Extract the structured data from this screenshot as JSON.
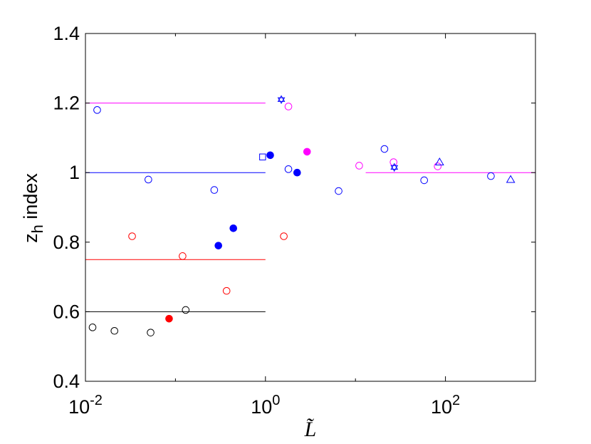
{
  "chart_data": {
    "type": "scatter",
    "title": "",
    "xlabel": "L̃",
    "ylabel_main": "z",
    "ylabel_sub": "h",
    "ylabel_rest": " index",
    "xscale": "log",
    "xlim": [
      0.01,
      1000
    ],
    "ylim": [
      0.4,
      1.4
    ],
    "xticks": [
      {
        "value": 0.01,
        "base": "10",
        "exp": "-2"
      },
      {
        "value": 1,
        "base": "10",
        "exp": "0"
      },
      {
        "value": 100,
        "base": "10",
        "exp": "2"
      }
    ],
    "yticks": [
      {
        "value": 0.4,
        "label": "0.4"
      },
      {
        "value": 0.6,
        "label": "0.6"
      },
      {
        "value": 0.8,
        "label": "0.8"
      },
      {
        "value": 1.0,
        "label": "1"
      },
      {
        "value": 1.2,
        "label": "1.2"
      },
      {
        "value": 1.4,
        "label": "1.4"
      }
    ],
    "grid": false,
    "reference_lines": [
      {
        "y": 1.2,
        "x0": 0.01,
        "x1": 1,
        "color": "#ff00ff"
      },
      {
        "y": 1.0,
        "x0": 0.01,
        "x1": 1,
        "color": "#0000ff"
      },
      {
        "y": 0.75,
        "x0": 0.01,
        "x1": 1,
        "color": "#ff0000"
      },
      {
        "y": 0.6,
        "x0": 0.01,
        "x1": 1,
        "color": "#000000"
      },
      {
        "y": 1.0,
        "x0": 13,
        "x1": 1000,
        "color": "#ff00ff"
      }
    ],
    "points": [
      {
        "x": 0.012,
        "y": 0.555,
        "marker": "circle",
        "filled": false,
        "color": "#000000"
      },
      {
        "x": 0.021,
        "y": 0.545,
        "marker": "circle",
        "filled": false,
        "color": "#000000"
      },
      {
        "x": 0.053,
        "y": 0.54,
        "marker": "circle",
        "filled": false,
        "color": "#000000"
      },
      {
        "x": 0.13,
        "y": 0.605,
        "marker": "circle",
        "filled": false,
        "color": "#000000"
      },
      {
        "x": 0.085,
        "y": 0.58,
        "marker": "circle",
        "filled": true,
        "color": "#ff0000"
      },
      {
        "x": 0.033,
        "y": 0.817,
        "marker": "circle",
        "filled": false,
        "color": "#ff0000"
      },
      {
        "x": 0.12,
        "y": 0.76,
        "marker": "circle",
        "filled": false,
        "color": "#ff0000"
      },
      {
        "x": 0.37,
        "y": 0.66,
        "marker": "circle",
        "filled": false,
        "color": "#ff0000"
      },
      {
        "x": 1.6,
        "y": 0.817,
        "marker": "circle",
        "filled": false,
        "color": "#ff0000"
      },
      {
        "x": 0.3,
        "y": 0.79,
        "marker": "circle",
        "filled": true,
        "color": "#0000ff"
      },
      {
        "x": 0.44,
        "y": 0.84,
        "marker": "circle",
        "filled": true,
        "color": "#0000ff"
      },
      {
        "x": 1.13,
        "y": 1.05,
        "marker": "circle",
        "filled": true,
        "color": "#0000ff"
      },
      {
        "x": 2.25,
        "y": 1.0,
        "marker": "circle",
        "filled": true,
        "color": "#0000ff"
      },
      {
        "x": 2.9,
        "y": 1.06,
        "marker": "circle",
        "filled": true,
        "color": "#ff00ff"
      },
      {
        "x": 0.0135,
        "y": 1.18,
        "marker": "circle",
        "filled": false,
        "color": "#0000ff"
      },
      {
        "x": 0.05,
        "y": 0.98,
        "marker": "circle",
        "filled": false,
        "color": "#0000ff"
      },
      {
        "x": 0.27,
        "y": 0.95,
        "marker": "circle",
        "filled": false,
        "color": "#0000ff"
      },
      {
        "x": 1.8,
        "y": 1.01,
        "marker": "circle",
        "filled": false,
        "color": "#0000ff"
      },
      {
        "x": 6.5,
        "y": 0.947,
        "marker": "circle",
        "filled": false,
        "color": "#0000ff"
      },
      {
        "x": 21,
        "y": 1.068,
        "marker": "circle",
        "filled": false,
        "color": "#0000ff"
      },
      {
        "x": 58,
        "y": 0.978,
        "marker": "circle",
        "filled": false,
        "color": "#0000ff"
      },
      {
        "x": 320,
        "y": 0.99,
        "marker": "circle",
        "filled": false,
        "color": "#0000ff"
      },
      {
        "x": 1.8,
        "y": 1.19,
        "marker": "circle",
        "filled": false,
        "color": "#ff00ff"
      },
      {
        "x": 11,
        "y": 1.02,
        "marker": "circle",
        "filled": false,
        "color": "#ff00ff"
      },
      {
        "x": 26.5,
        "y": 1.03,
        "marker": "circle",
        "filled": false,
        "color": "#ff00ff"
      },
      {
        "x": 82,
        "y": 1.018,
        "marker": "circle",
        "filled": false,
        "color": "#ff00ff"
      },
      {
        "x": 0.93,
        "y": 1.045,
        "marker": "square",
        "filled": false,
        "color": "#0000ff"
      },
      {
        "x": 1.5,
        "y": 1.21,
        "marker": "hexagram",
        "filled": false,
        "color": "#0000ff"
      },
      {
        "x": 27,
        "y": 1.015,
        "marker": "hexagram",
        "filled": false,
        "color": "#0000ff"
      },
      {
        "x": 86,
        "y": 1.03,
        "marker": "triangle",
        "filled": false,
        "color": "#0000ff"
      },
      {
        "x": 530,
        "y": 0.98,
        "marker": "triangle",
        "filled": false,
        "color": "#0000ff"
      }
    ]
  }
}
